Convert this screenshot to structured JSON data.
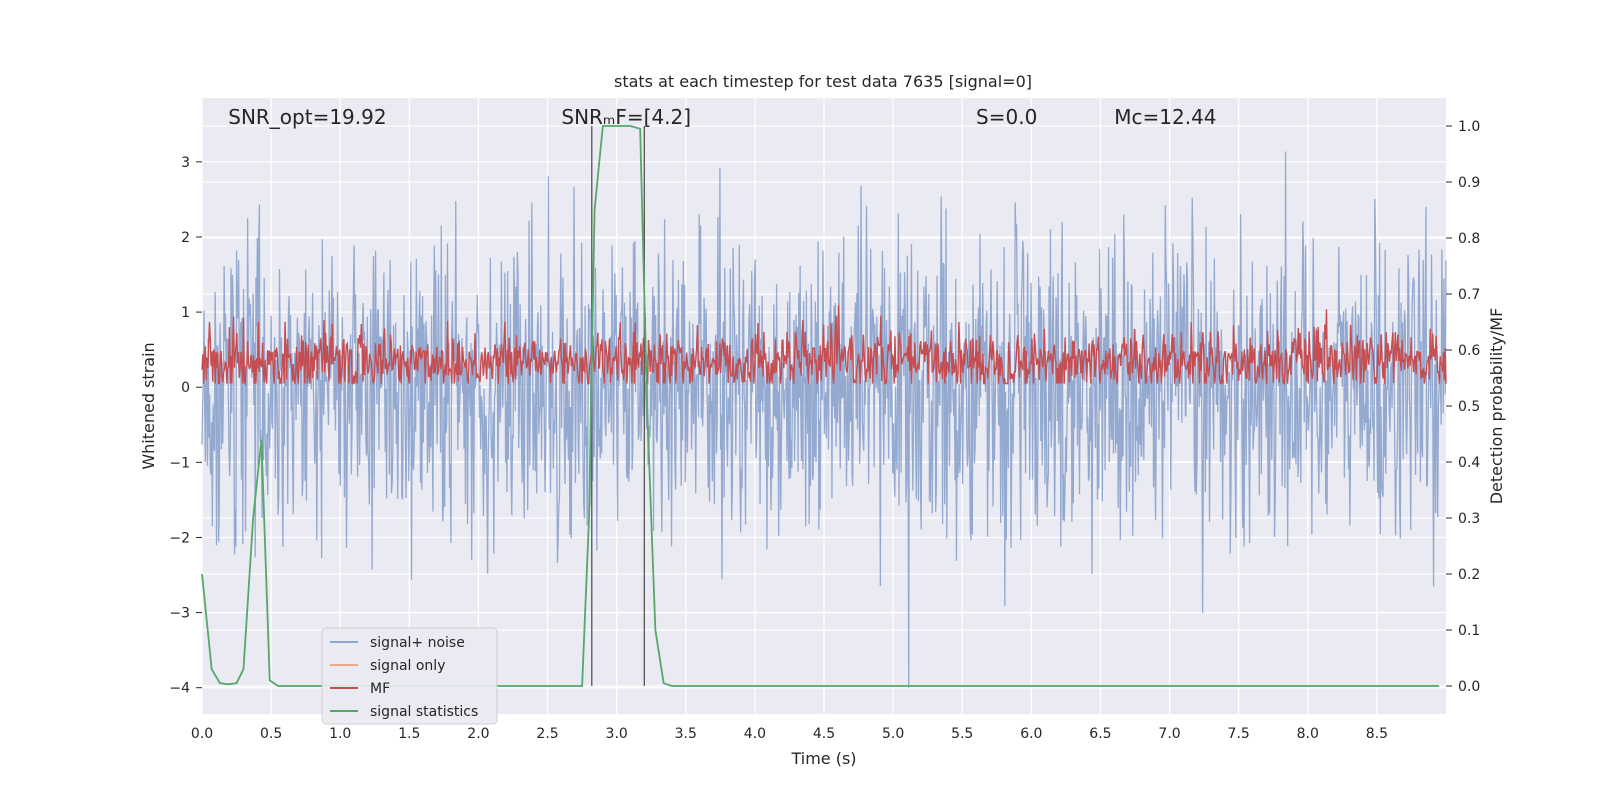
{
  "chart_data": {
    "type": "line",
    "title": "stats at each timestep for test data 7635 [signal=0]",
    "xlabel": "Time (s)",
    "ylabel": "Whitened strain",
    "y2label": "Detection probability/MF",
    "xlim": [
      0,
      9.0
    ],
    "ylim": [
      -4.35,
      3.85
    ],
    "y2lim": [
      -0.05,
      1.05
    ],
    "xticks": [
      0.0,
      0.5,
      1.0,
      1.5,
      2.0,
      2.5,
      3.0,
      3.5,
      4.0,
      4.5,
      5.0,
      5.5,
      6.0,
      6.5,
      7.0,
      7.5,
      8.0,
      8.5
    ],
    "xtick_labels": [
      "0.0",
      "0.5",
      "1.0",
      "1.5",
      "2.0",
      "2.5",
      "3.0",
      "3.5",
      "4.0",
      "4.5",
      "5.0",
      "5.5",
      "6.0",
      "6.5",
      "7.0",
      "7.5",
      "8.0",
      "8.5"
    ],
    "yticks": [
      -4,
      -3,
      -2,
      -1,
      0,
      1,
      2,
      3
    ],
    "ytick_labels": [
      "−4",
      "−3",
      "−2",
      "−1",
      "0",
      "1",
      "2",
      "3"
    ],
    "y2ticks": [
      0.0,
      0.1,
      0.2,
      0.3,
      0.4,
      0.5,
      0.6,
      0.7,
      0.8,
      0.9,
      1.0
    ],
    "y2tick_labels": [
      "0.0",
      "0.1",
      "0.2",
      "0.3",
      "0.4",
      "0.5",
      "0.6",
      "0.7",
      "0.8",
      "0.9",
      "1.0"
    ],
    "grid": true,
    "legend_position": "lower-left",
    "annotations": [
      {
        "id": "snr-opt",
        "text": "SNR_opt=19.92",
        "x": 0.19
      },
      {
        "id": "snr-mf",
        "text": "SNRₘF=[4.2]",
        "x": 2.6
      },
      {
        "id": "s",
        "text": "S=0.0",
        "x": 5.6
      },
      {
        "id": "mc",
        "text": "Mc=12.44",
        "x": 6.6
      }
    ],
    "vlines": [
      2.82,
      3.2
    ],
    "series": [
      {
        "name": "signal+ noise",
        "color": "#8fa5cd",
        "axis": "left",
        "kind": "noise",
        "sigma": 1.0,
        "range": [
          -4.0,
          3.4
        ]
      },
      {
        "name": "signal only",
        "color": "#e8a98a",
        "axis": "left",
        "kind": "flat",
        "values": [
          0,
          0
        ]
      },
      {
        "name": "MF",
        "color": "#c44e52",
        "axis": "right",
        "kind": "mf",
        "base": 0.58,
        "spread": 0.04
      },
      {
        "name": "signal statistics",
        "color": "#55a868",
        "axis": "right",
        "kind": "points",
        "x": [
          0.0,
          0.07,
          0.13,
          0.19,
          0.25,
          0.3,
          0.37,
          0.43,
          0.49,
          0.55,
          0.7,
          1.0,
          1.5,
          2.0,
          2.5,
          2.75,
          2.8,
          2.84,
          2.9,
          3.0,
          3.1,
          3.17,
          3.22,
          3.28,
          3.34,
          3.4,
          4.0,
          5.0,
          6.0,
          7.0,
          8.0,
          8.95
        ],
        "y": [
          0.2,
          0.03,
          0.005,
          0.003,
          0.005,
          0.03,
          0.3,
          0.44,
          0.01,
          0.0,
          0.0,
          0.0,
          0.0,
          0.0,
          0.0,
          0.0,
          0.3,
          0.85,
          1.0,
          1.0,
          1.0,
          0.995,
          0.5,
          0.1,
          0.005,
          0.0,
          0.0,
          0.0,
          0.0,
          0.0,
          0.0,
          0.0
        ]
      }
    ]
  }
}
